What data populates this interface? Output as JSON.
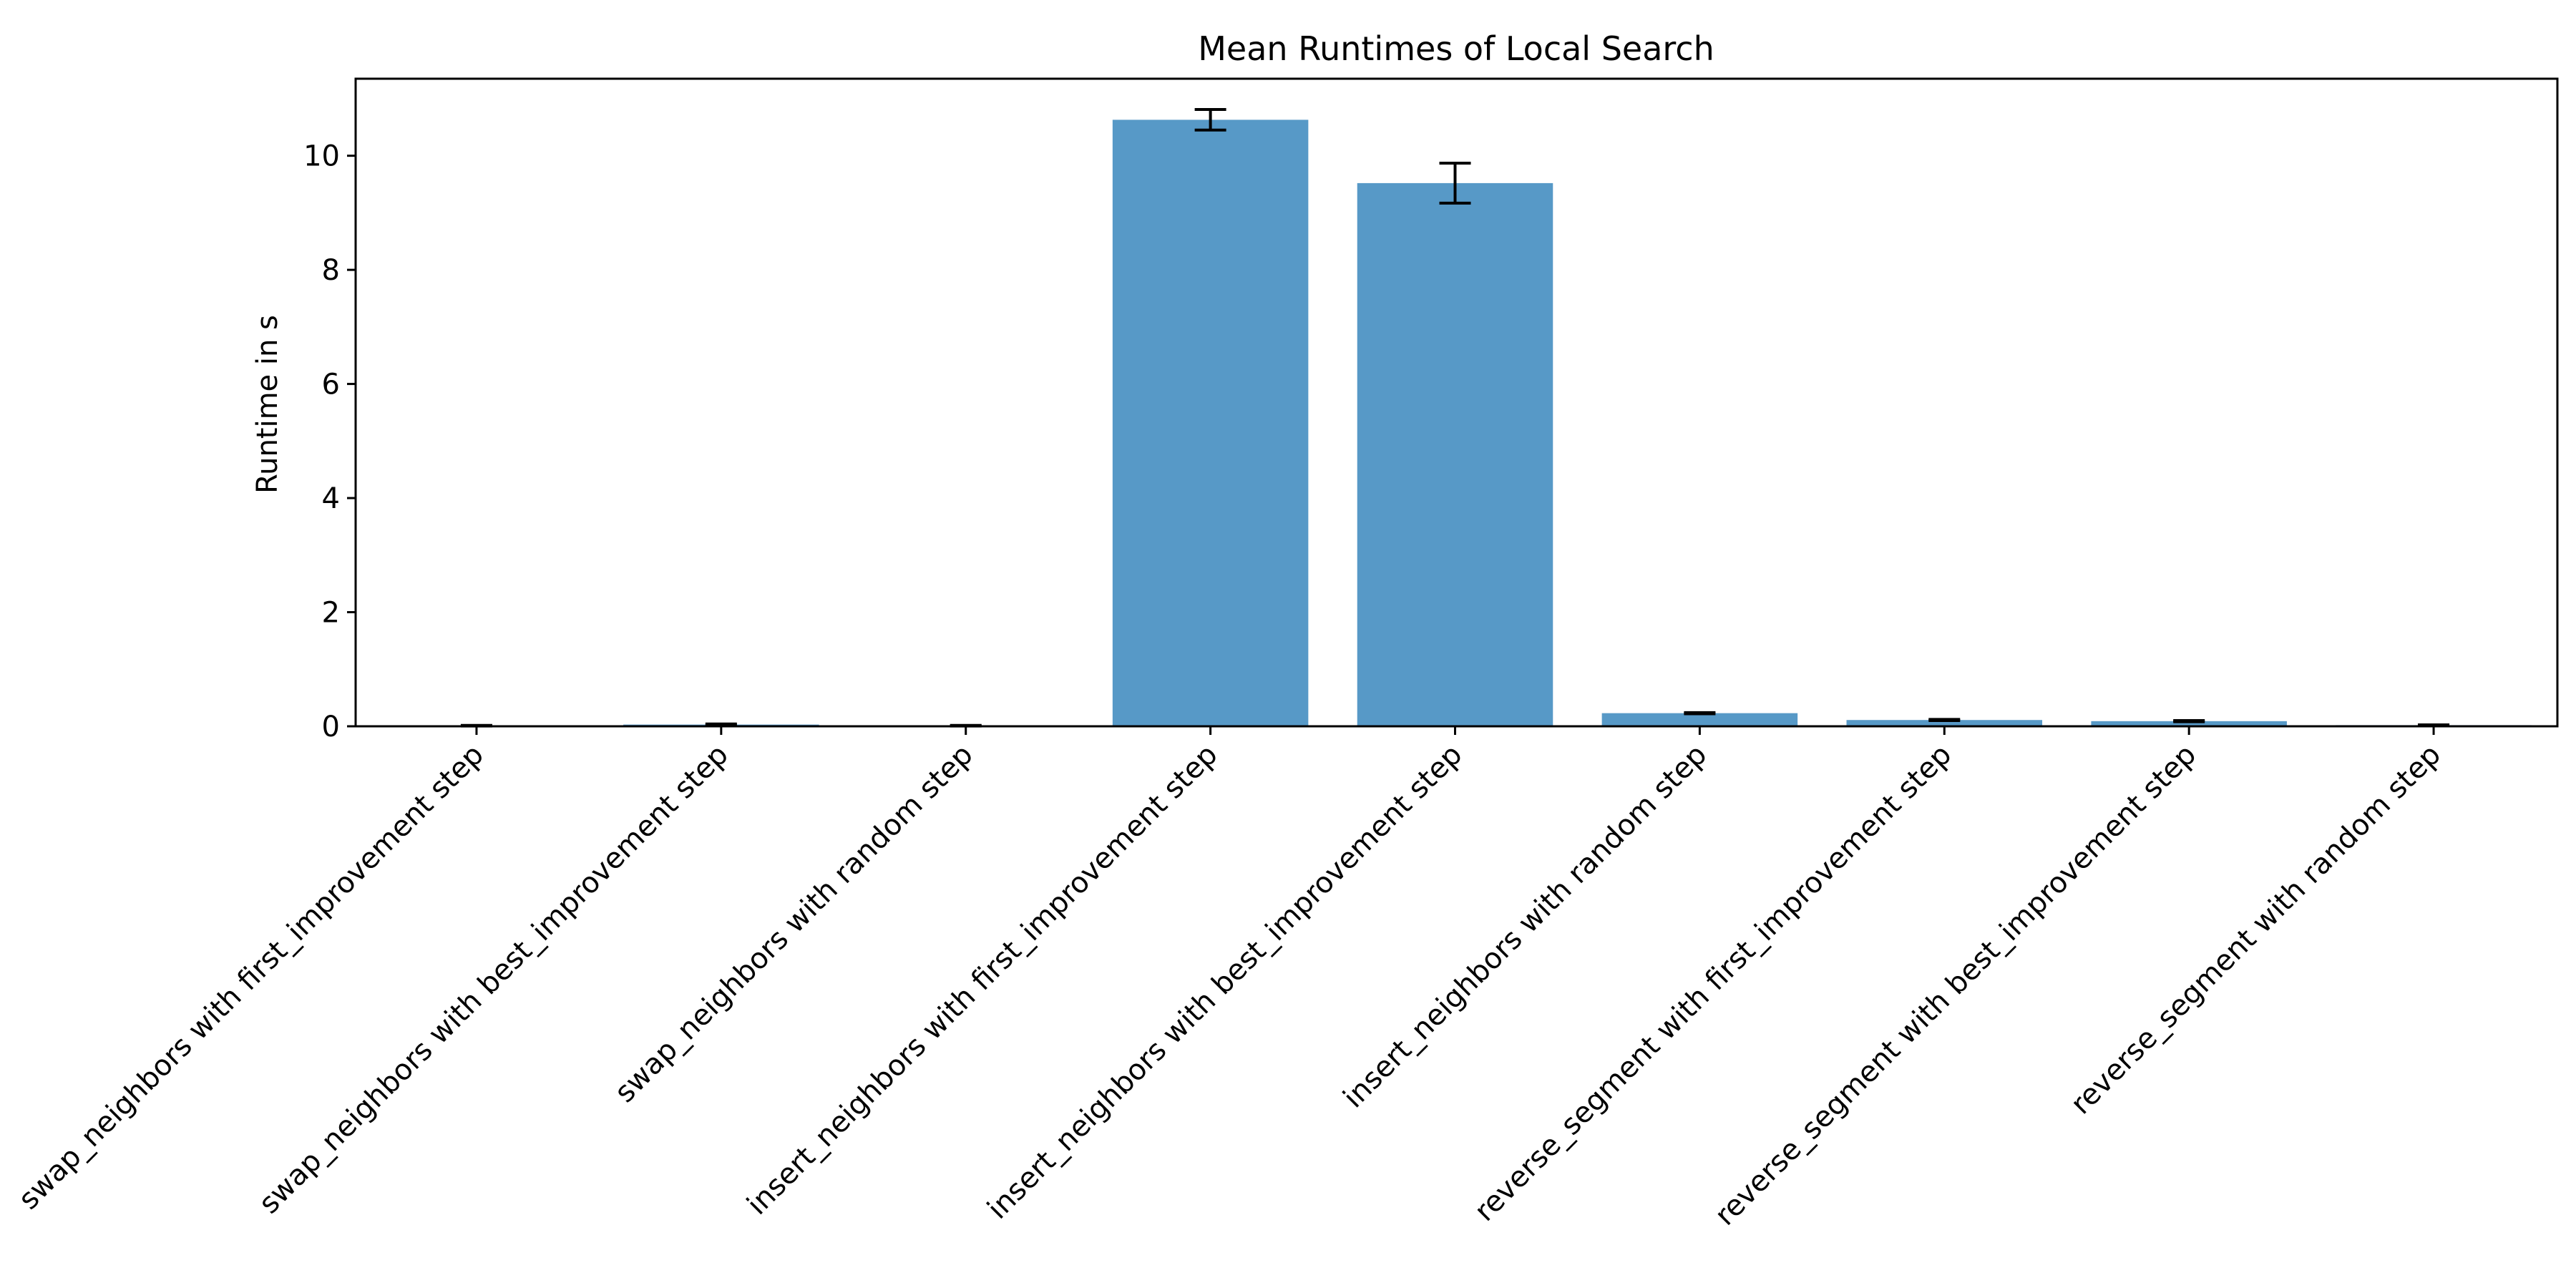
{
  "chart_data": {
    "type": "bar",
    "title": "Mean Runtimes of Local Search",
    "xlabel": "",
    "ylabel": "Runtime in s",
    "ylim": [
      0,
      11.35
    ],
    "yticks": [
      0,
      2,
      4,
      6,
      8,
      10
    ],
    "grid": false,
    "legend": "none",
    "bar_color": "#5799c7",
    "categories": [
      "swap_neighbors with first_improvement step",
      "swap_neighbors with best_improvement step",
      "swap_neighbors with random step",
      "insert_neighbors with first_improvement step",
      "insert_neighbors with best_improvement step",
      "insert_neighbors with random step",
      "reverse_segment with first_improvement step",
      "reverse_segment with best_improvement step",
      "reverse_segment with random step"
    ],
    "values": [
      0.01,
      0.03,
      0.01,
      10.63,
      9.52,
      0.23,
      0.11,
      0.09,
      0.02
    ],
    "errors": [
      0.005,
      0.01,
      0.005,
      0.18,
      0.35,
      0.01,
      0.01,
      0.01,
      0.005
    ]
  }
}
